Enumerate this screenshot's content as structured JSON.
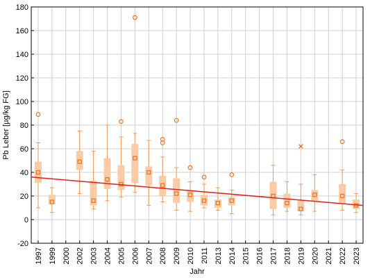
{
  "chart_data": {
    "type": "box",
    "xlabel": "Jahr",
    "ylabel": "Pb Leber [µg/kg FG]",
    "ylim": [
      -20,
      180
    ],
    "yticks": [
      -20,
      0,
      20,
      40,
      60,
      80,
      100,
      120,
      140,
      160,
      180
    ],
    "categories": [
      "1997",
      "1999",
      "2000",
      "2002",
      "2003",
      "2004",
      "2005",
      "2006",
      "2007",
      "2008",
      "2009",
      "2010",
      "2011",
      "2013",
      "2014",
      "2015",
      "2016",
      "2017",
      "2018",
      "2019",
      "2020",
      "2021",
      "2022",
      "2023"
    ],
    "boxes": [
      {
        "year": "1997",
        "min": 10,
        "q1": 31,
        "median": 40,
        "q3": 49,
        "max": 65,
        "outliers": [
          89
        ],
        "extremes": []
      },
      {
        "year": "1999",
        "min": 6,
        "q1": 13,
        "median": 15,
        "q3": 21,
        "max": 27,
        "outliers": [],
        "extremes": []
      },
      {
        "year": "2000",
        "empty": true
      },
      {
        "year": "2002",
        "min": 22,
        "q1": 42,
        "median": 49,
        "q3": 58,
        "max": 75,
        "outliers": [],
        "extremes": []
      },
      {
        "year": "2003",
        "min": 9,
        "q1": 12,
        "median": 16,
        "q3": 33,
        "max": 58,
        "outliers": [],
        "extremes": []
      },
      {
        "year": "2004",
        "min": 16,
        "q1": 26,
        "median": 34,
        "q3": 52,
        "max": 80,
        "outliers": [],
        "extremes": []
      },
      {
        "year": "2005",
        "min": 19,
        "q1": 25,
        "median": 30,
        "q3": 46,
        "max": 70,
        "outliers": [
          83
        ],
        "extremes": []
      },
      {
        "year": "2006",
        "min": 23,
        "q1": 31,
        "median": 52,
        "q3": 64,
        "max": 73,
        "outliers": [
          171
        ],
        "extremes": []
      },
      {
        "year": "2007",
        "min": 12,
        "q1": 29,
        "median": 40,
        "q3": 45,
        "max": 67,
        "outliers": [],
        "extremes": []
      },
      {
        "year": "2008",
        "min": 15,
        "q1": 20,
        "median": 29,
        "q3": 37,
        "max": 53,
        "outliers": [
          65,
          68
        ],
        "extremes": []
      },
      {
        "year": "2009",
        "min": 8,
        "q1": 14,
        "median": 22,
        "q3": 35,
        "max": 44,
        "outliers": [
          84
        ],
        "extremes": []
      },
      {
        "year": "2010",
        "min": 7,
        "q1": 15,
        "median": 21,
        "q3": 25,
        "max": 32,
        "outliers": [
          44
        ],
        "extremes": []
      },
      {
        "year": "2011",
        "min": 10,
        "q1": 12,
        "median": 16,
        "q3": 21,
        "max": 30,
        "outliers": [
          36
        ],
        "extremes": []
      },
      {
        "year": "2013",
        "min": 8,
        "q1": 10,
        "median": 14,
        "q3": 17,
        "max": 27,
        "outliers": [],
        "extremes": []
      },
      {
        "year": "2014",
        "min": 5,
        "q1": 12,
        "median": 16,
        "q3": 19,
        "max": 25,
        "outliers": [
          38
        ],
        "extremes": []
      },
      {
        "year": "2015",
        "empty": true
      },
      {
        "year": "2016",
        "empty": true
      },
      {
        "year": "2017",
        "min": 4,
        "q1": 9,
        "median": 20,
        "q3": 32,
        "max": 46,
        "outliers": [],
        "extremes": []
      },
      {
        "year": "2018",
        "min": 7,
        "q1": 10,
        "median": 14,
        "q3": 22,
        "max": 32,
        "outliers": [],
        "extremes": []
      },
      {
        "year": "2019",
        "min": 4,
        "q1": 7,
        "median": 9,
        "q3": 16,
        "max": 30,
        "outliers": [],
        "extremes": [
          62
        ]
      },
      {
        "year": "2020",
        "min": 7,
        "q1": 16,
        "median": 21,
        "q3": 25,
        "max": 38,
        "outliers": [],
        "extremes": []
      },
      {
        "year": "2021",
        "empty": true
      },
      {
        "year": "2022",
        "min": 8,
        "q1": 14,
        "median": 20,
        "q3": 30,
        "max": 42,
        "outliers": [
          66
        ],
        "extremes": []
      },
      {
        "year": "2023",
        "min": 6,
        "q1": 9,
        "median": 12,
        "q3": 17,
        "max": 22,
        "outliers": [],
        "extremes": []
      }
    ],
    "trend_line": {
      "start": 36,
      "end": 12
    },
    "colors": {
      "box_fill": "#f9cba6",
      "whisker": "#ee9a58",
      "median_marker": "#e47a2a",
      "outlier": "#e47a2a",
      "trend": "#e0201b",
      "grid": "#cfcfcf"
    },
    "grid": true
  }
}
